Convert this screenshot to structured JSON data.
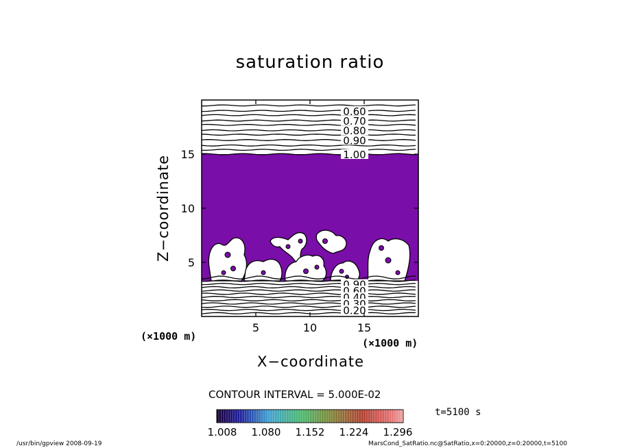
{
  "title": "saturation ratio",
  "xlabel": "X−coordinate",
  "ylabel": "Z−coordinate",
  "x_unit": "(×1000 m)",
  "y_unit": "(×1000 m)",
  "contour_interval": "CONTOUR INTERVAL = 5.000E-02",
  "time_label": "t=5100 s",
  "footer_left": "/usr/bin/gpview   2008-09-19",
  "footer_right": "MarsCond_SatRatio.nc@SatRatio,x=0:20000,z=0:20000,t=5100",
  "colors": {
    "fill": "#7a0ea8",
    "line": "#000000"
  },
  "chart_data": {
    "type": "heatmap",
    "title": "saturation ratio",
    "xlabel": "X−coordinate",
    "ylabel": "Z−coordinate",
    "xlim": [
      0,
      20
    ],
    "ylim": [
      0,
      20
    ],
    "xticks": [
      5,
      10,
      15
    ],
    "yticks": [
      5,
      10,
      15
    ],
    "fill_threshold": 1.008,
    "upper_contours": [
      {
        "z": 19.0,
        "label": "0.60"
      },
      {
        "z": 18.1,
        "label": "0.70"
      },
      {
        "z": 17.2,
        "label": "0.80"
      },
      {
        "z": 16.3,
        "label": "0.90"
      },
      {
        "z": 15.0,
        "label": "1.00"
      }
    ],
    "upper_extra_lines": [
      19.5,
      18.6,
      17.7,
      16.8,
      15.8,
      15.4
    ],
    "lower_contours": [
      {
        "z": 3.0,
        "label": "0.90"
      },
      {
        "z": 2.4,
        "label": "0.60"
      },
      {
        "z": 1.8,
        "label": "0.40"
      },
      {
        "z": 1.2,
        "label": "0.30"
      },
      {
        "z": 0.6,
        "label": "0.20"
      }
    ],
    "lower_extra_lines": [
      3.3,
      2.7,
      2.1,
      1.5,
      0.9,
      0.3
    ],
    "colorbar": {
      "ticks": [
        "1.008",
        "1.080",
        "1.152",
        "1.224",
        "1.296"
      ],
      "range": [
        1.008,
        1.296
      ]
    }
  }
}
